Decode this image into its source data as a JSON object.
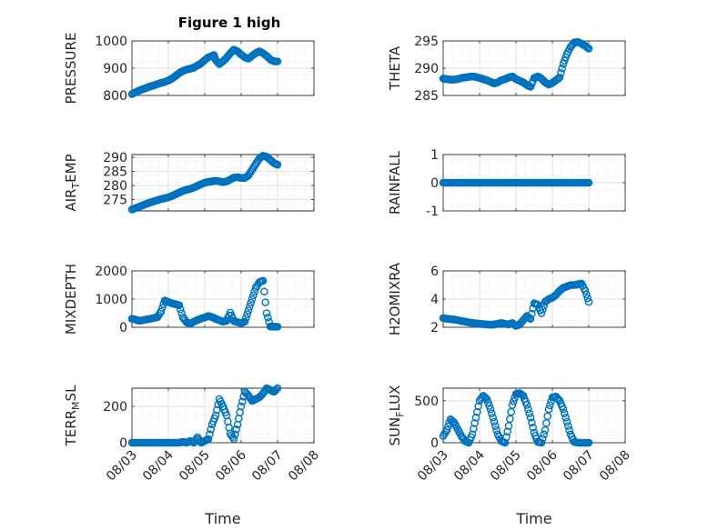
{
  "figure": {
    "title": "Figure 1 high",
    "x_ticks": [
      "08/03",
      "08/04",
      "08/05",
      "08/06",
      "08/07",
      "08/08"
    ],
    "x_label": "Time",
    "marker_color": "#0072bd"
  },
  "chart_data": [
    {
      "type": "scatter",
      "id": "pressure",
      "ylabel": "PRESSURE",
      "ylabel_sub": "",
      "ylim": [
        800,
        1000
      ],
      "yticks": [
        800,
        900,
        1000
      ],
      "ytick_labels": [
        "800",
        "900",
        "1000"
      ],
      "xlabel": "",
      "x_label_shown": false,
      "points": [
        [
          3.0,
          805
        ],
        [
          3.1,
          812
        ],
        [
          3.2,
          818
        ],
        [
          3.3,
          823
        ],
        [
          3.4,
          828
        ],
        [
          3.5,
          833
        ],
        [
          3.6,
          837
        ],
        [
          3.7,
          842
        ],
        [
          3.8,
          846
        ],
        [
          3.9,
          850
        ],
        [
          4.0,
          855
        ],
        [
          4.1,
          862
        ],
        [
          4.2,
          872
        ],
        [
          4.3,
          882
        ],
        [
          4.4,
          890
        ],
        [
          4.5,
          895
        ],
        [
          4.6,
          898
        ],
        [
          4.7,
          902
        ],
        [
          4.8,
          910
        ],
        [
          4.9,
          918
        ],
        [
          5.0,
          930
        ],
        [
          5.1,
          940
        ],
        [
          5.2,
          945
        ],
        [
          5.25,
          948
        ],
        [
          5.3,
          930
        ],
        [
          5.4,
          915
        ],
        [
          5.5,
          925
        ],
        [
          5.6,
          938
        ],
        [
          5.7,
          955
        ],
        [
          5.8,
          968
        ],
        [
          5.9,
          962
        ],
        [
          6.0,
          950
        ],
        [
          6.1,
          940
        ],
        [
          6.2,
          935
        ],
        [
          6.3,
          945
        ],
        [
          6.4,
          955
        ],
        [
          6.5,
          962
        ],
        [
          6.6,
          955
        ],
        [
          6.7,
          945
        ],
        [
          6.8,
          932
        ],
        [
          6.9,
          925
        ],
        [
          7.0,
          925
        ]
      ]
    },
    {
      "type": "scatter",
      "id": "theta",
      "ylabel": "THETA",
      "ylabel_sub": "",
      "ylim": [
        285,
        295
      ],
      "yticks": [
        285,
        290,
        295
      ],
      "ytick_labels": [
        "285",
        "290",
        "295"
      ],
      "xlabel": "",
      "x_label_shown": false,
      "points": [
        [
          3.0,
          288.1
        ],
        [
          3.1,
          288.0
        ],
        [
          3.2,
          287.9
        ],
        [
          3.3,
          287.9
        ],
        [
          3.4,
          288.0
        ],
        [
          3.5,
          288.2
        ],
        [
          3.6,
          288.3
        ],
        [
          3.7,
          288.4
        ],
        [
          3.8,
          288.5
        ],
        [
          3.9,
          288.4
        ],
        [
          4.0,
          288.2
        ],
        [
          4.1,
          288.0
        ],
        [
          4.2,
          287.8
        ],
        [
          4.3,
          287.5
        ],
        [
          4.4,
          287.2
        ],
        [
          4.5,
          287.4
        ],
        [
          4.6,
          287.8
        ],
        [
          4.7,
          288.0
        ],
        [
          4.8,
          288.3
        ],
        [
          4.9,
          288.5
        ],
        [
          5.0,
          288.0
        ],
        [
          5.1,
          287.7
        ],
        [
          5.2,
          287.4
        ],
        [
          5.3,
          286.9
        ],
        [
          5.4,
          286.6
        ],
        [
          5.5,
          288.2
        ],
        [
          5.6,
          288.5
        ],
        [
          5.7,
          288.1
        ],
        [
          5.8,
          287.4
        ],
        [
          5.9,
          287.0
        ],
        [
          6.0,
          287.3
        ],
        [
          6.1,
          287.8
        ],
        [
          6.2,
          288.3
        ],
        [
          6.3,
          290.8
        ],
        [
          6.4,
          292.6
        ],
        [
          6.5,
          293.9
        ],
        [
          6.6,
          294.7
        ],
        [
          6.7,
          294.8
        ],
        [
          6.8,
          294.5
        ],
        [
          6.9,
          294.1
        ],
        [
          7.0,
          293.6
        ]
      ]
    },
    {
      "type": "scatter",
      "id": "air_temp",
      "ylabel": "AIR",
      "ylabel_sub": "T",
      "ylabel_tail": "EMP",
      "ylim": [
        271,
        291
      ],
      "yticks": [
        275,
        280,
        285,
        290
      ],
      "ytick_labels": [
        "275",
        "280",
        "285",
        "290"
      ],
      "xlabel": "",
      "x_label_shown": false,
      "points": [
        [
          3.0,
          271.5
        ],
        [
          3.1,
          272.0
        ],
        [
          3.2,
          272.5
        ],
        [
          3.3,
          273.0
        ],
        [
          3.4,
          273.5
        ],
        [
          3.5,
          274.0
        ],
        [
          3.6,
          274.4
        ],
        [
          3.7,
          274.8
        ],
        [
          3.8,
          275.2
        ],
        [
          3.9,
          275.5
        ],
        [
          4.0,
          275.8
        ],
        [
          4.1,
          276.3
        ],
        [
          4.2,
          276.9
        ],
        [
          4.3,
          277.5
        ],
        [
          4.4,
          278.1
        ],
        [
          4.5,
          278.5
        ],
        [
          4.6,
          278.8
        ],
        [
          4.7,
          279.3
        ],
        [
          4.8,
          279.9
        ],
        [
          4.9,
          280.5
        ],
        [
          5.0,
          281.0
        ],
        [
          5.1,
          281.3
        ],
        [
          5.2,
          281.5
        ],
        [
          5.3,
          281.7
        ],
        [
          5.4,
          281.5
        ],
        [
          5.5,
          281.2
        ],
        [
          5.6,
          281.5
        ],
        [
          5.7,
          282.1
        ],
        [
          5.8,
          282.8
        ],
        [
          5.9,
          283.0
        ],
        [
          6.0,
          282.7
        ],
        [
          6.1,
          282.7
        ],
        [
          6.2,
          283.6
        ],
        [
          6.3,
          285.6
        ],
        [
          6.4,
          287.6
        ],
        [
          6.5,
          289.6
        ],
        [
          6.6,
          290.6
        ],
        [
          6.7,
          290.2
        ],
        [
          6.8,
          289.1
        ],
        [
          6.9,
          288.0
        ],
        [
          7.0,
          287.4
        ]
      ]
    },
    {
      "type": "scatter",
      "id": "rainfall",
      "ylabel": "RAINFALL",
      "ylabel_sub": "",
      "ylim": [
        -1,
        1
      ],
      "yticks": [
        -1,
        0,
        1
      ],
      "ytick_labels": [
        "-1",
        "0",
        "1"
      ],
      "xlabel": "",
      "x_label_shown": false,
      "points": [
        [
          3.0,
          0
        ],
        [
          3.1,
          0
        ],
        [
          3.2,
          0
        ],
        [
          3.3,
          0
        ],
        [
          3.4,
          0
        ],
        [
          3.5,
          0
        ],
        [
          3.6,
          0
        ],
        [
          3.7,
          0
        ],
        [
          3.8,
          0
        ],
        [
          3.9,
          0
        ],
        [
          4.0,
          0
        ],
        [
          4.1,
          0
        ],
        [
          4.2,
          0
        ],
        [
          4.3,
          0
        ],
        [
          4.4,
          0
        ],
        [
          4.5,
          0
        ],
        [
          4.6,
          0
        ],
        [
          4.7,
          0
        ],
        [
          4.8,
          0
        ],
        [
          4.9,
          0
        ],
        [
          5.0,
          0
        ],
        [
          5.1,
          0
        ],
        [
          5.2,
          0
        ],
        [
          5.3,
          0
        ],
        [
          5.4,
          0
        ],
        [
          5.5,
          0
        ],
        [
          5.6,
          0
        ],
        [
          5.7,
          0
        ],
        [
          5.8,
          0
        ],
        [
          5.9,
          0
        ],
        [
          6.0,
          0
        ],
        [
          6.1,
          0
        ],
        [
          6.2,
          0
        ],
        [
          6.3,
          0
        ],
        [
          6.4,
          0
        ],
        [
          6.5,
          0
        ],
        [
          6.6,
          0
        ],
        [
          6.7,
          0
        ],
        [
          6.8,
          0
        ],
        [
          6.9,
          0
        ],
        [
          7.0,
          0
        ]
      ]
    },
    {
      "type": "scatter",
      "id": "mixdepth",
      "ylabel": "MIXDEPTH",
      "ylabel_sub": "",
      "ylim": [
        0,
        2000
      ],
      "yticks": [
        0,
        1000,
        2000
      ],
      "ytick_labels": [
        "0",
        "1000",
        "2000"
      ],
      "xlabel": "",
      "x_label_shown": false,
      "points": [
        [
          3.0,
          300
        ],
        [
          3.1,
          270
        ],
        [
          3.2,
          230
        ],
        [
          3.3,
          250
        ],
        [
          3.4,
          280
        ],
        [
          3.5,
          300
        ],
        [
          3.6,
          330
        ],
        [
          3.7,
          360
        ],
        [
          3.8,
          560
        ],
        [
          3.9,
          950
        ],
        [
          4.0,
          900
        ],
        [
          4.1,
          850
        ],
        [
          4.2,
          820
        ],
        [
          4.3,
          780
        ],
        [
          4.4,
          350
        ],
        [
          4.5,
          180
        ],
        [
          4.6,
          130
        ],
        [
          4.7,
          200
        ],
        [
          4.8,
          260
        ],
        [
          4.9,
          310
        ],
        [
          5.0,
          350
        ],
        [
          5.1,
          400
        ],
        [
          5.2,
          360
        ],
        [
          5.3,
          300
        ],
        [
          5.4,
          250
        ],
        [
          5.5,
          200
        ],
        [
          5.6,
          230
        ],
        [
          5.7,
          520
        ],
        [
          5.8,
          220
        ],
        [
          5.9,
          180
        ],
        [
          6.0,
          150
        ],
        [
          6.1,
          200
        ],
        [
          6.2,
          600
        ],
        [
          6.3,
          1000
        ],
        [
          6.4,
          1400
        ],
        [
          6.5,
          1600
        ],
        [
          6.6,
          1650
        ],
        [
          6.7,
          500
        ],
        [
          6.8,
          30
        ],
        [
          6.9,
          20
        ],
        [
          7.0,
          20
        ]
      ]
    },
    {
      "type": "scatter",
      "id": "h2omixra",
      "ylabel": "H2OMIXRA",
      "ylabel_sub": "",
      "ylim": [
        2,
        6
      ],
      "yticks": [
        2,
        4,
        6
      ],
      "ytick_labels": [
        "2",
        "4",
        "6"
      ],
      "xlabel": "",
      "x_label_shown": false,
      "points": [
        [
          3.0,
          2.65
        ],
        [
          3.1,
          2.6
        ],
        [
          3.2,
          2.58
        ],
        [
          3.3,
          2.55
        ],
        [
          3.4,
          2.5
        ],
        [
          3.5,
          2.45
        ],
        [
          3.6,
          2.4
        ],
        [
          3.7,
          2.35
        ],
        [
          3.8,
          2.3
        ],
        [
          3.9,
          2.28
        ],
        [
          4.0,
          2.25
        ],
        [
          4.1,
          2.22
        ],
        [
          4.2,
          2.2
        ],
        [
          4.3,
          2.18
        ],
        [
          4.4,
          2.2
        ],
        [
          4.5,
          2.25
        ],
        [
          4.6,
          2.3
        ],
        [
          4.7,
          2.25
        ],
        [
          4.8,
          2.2
        ],
        [
          4.9,
          2.3
        ],
        [
          5.0,
          2.1
        ],
        [
          5.1,
          2.2
        ],
        [
          5.2,
          2.5
        ],
        [
          5.3,
          2.8
        ],
        [
          5.4,
          2.6
        ],
        [
          5.5,
          3.7
        ],
        [
          5.6,
          3.6
        ],
        [
          5.7,
          3.0
        ],
        [
          5.8,
          3.8
        ],
        [
          5.9,
          4.0
        ],
        [
          6.0,
          4.1
        ],
        [
          6.1,
          4.3
        ],
        [
          6.2,
          4.6
        ],
        [
          6.3,
          4.8
        ],
        [
          6.4,
          4.9
        ],
        [
          6.5,
          5.0
        ],
        [
          6.6,
          5.0
        ],
        [
          6.7,
          5.05
        ],
        [
          6.8,
          5.1
        ],
        [
          6.9,
          4.6
        ],
        [
          7.0,
          3.8
        ]
      ]
    },
    {
      "type": "scatter",
      "id": "terr_msl",
      "ylabel": "TERR",
      "ylabel_sub": "M",
      "ylabel_tail": "SL",
      "ylim": [
        0,
        300
      ],
      "yticks": [
        0,
        200
      ],
      "ytick_labels": [
        "0",
        "200"
      ],
      "xlabel": "Time",
      "x_label_shown": true,
      "points": [
        [
          3.0,
          0
        ],
        [
          3.1,
          0
        ],
        [
          3.2,
          0
        ],
        [
          3.3,
          0
        ],
        [
          3.4,
          0
        ],
        [
          3.5,
          0
        ],
        [
          3.6,
          0
        ],
        [
          3.7,
          0
        ],
        [
          3.8,
          0
        ],
        [
          3.9,
          0
        ],
        [
          4.0,
          0
        ],
        [
          4.1,
          0
        ],
        [
          4.2,
          0
        ],
        [
          4.3,
          0
        ],
        [
          4.4,
          5
        ],
        [
          4.5,
          0
        ],
        [
          4.6,
          10
        ],
        [
          4.7,
          0
        ],
        [
          4.8,
          30
        ],
        [
          4.9,
          0
        ],
        [
          5.0,
          10
        ],
        [
          5.1,
          20
        ],
        [
          5.2,
          100
        ],
        [
          5.3,
          150
        ],
        [
          5.4,
          240
        ],
        [
          5.5,
          200
        ],
        [
          5.6,
          150
        ],
        [
          5.7,
          50
        ],
        [
          5.8,
          20
        ],
        [
          5.9,
          100
        ],
        [
          6.0,
          200
        ],
        [
          6.1,
          280
        ],
        [
          6.2,
          260
        ],
        [
          6.3,
          230
        ],
        [
          6.4,
          240
        ],
        [
          6.5,
          250
        ],
        [
          6.6,
          270
        ],
        [
          6.7,
          300
        ],
        [
          6.8,
          290
        ],
        [
          6.9,
          280
        ],
        [
          7.0,
          300
        ]
      ]
    },
    {
      "type": "scatter",
      "id": "sun_flux",
      "ylabel": "SUN",
      "ylabel_sub": "F",
      "ylabel_tail": "LUX",
      "ylim": [
        0,
        650
      ],
      "yticks": [
        0,
        500
      ],
      "ytick_labels": [
        "0",
        "500"
      ],
      "xlabel": "Time",
      "x_label_shown": true,
      "points": [
        [
          3.0,
          80
        ],
        [
          3.1,
          150
        ],
        [
          3.2,
          280
        ],
        [
          3.3,
          240
        ],
        [
          3.4,
          160
        ],
        [
          3.5,
          80
        ],
        [
          3.6,
          20
        ],
        [
          3.7,
          0
        ],
        [
          3.8,
          100
        ],
        [
          3.9,
          300
        ],
        [
          4.0,
          500
        ],
        [
          4.1,
          560
        ],
        [
          4.2,
          520
        ],
        [
          4.3,
          400
        ],
        [
          4.4,
          250
        ],
        [
          4.5,
          100
        ],
        [
          4.6,
          20
        ],
        [
          4.7,
          0
        ],
        [
          4.8,
          200
        ],
        [
          4.9,
          450
        ],
        [
          5.0,
          580
        ],
        [
          5.1,
          590
        ],
        [
          5.2,
          560
        ],
        [
          5.3,
          450
        ],
        [
          5.4,
          300
        ],
        [
          5.5,
          120
        ],
        [
          5.6,
          10
        ],
        [
          5.7,
          0
        ],
        [
          5.8,
          150
        ],
        [
          5.9,
          400
        ],
        [
          6.0,
          540
        ],
        [
          6.1,
          550
        ],
        [
          6.2,
          500
        ],
        [
          6.3,
          400
        ],
        [
          6.4,
          250
        ],
        [
          6.5,
          100
        ],
        [
          6.6,
          10
        ],
        [
          6.7,
          0
        ],
        [
          6.8,
          0
        ],
        [
          6.9,
          0
        ],
        [
          7.0,
          0
        ]
      ]
    }
  ]
}
